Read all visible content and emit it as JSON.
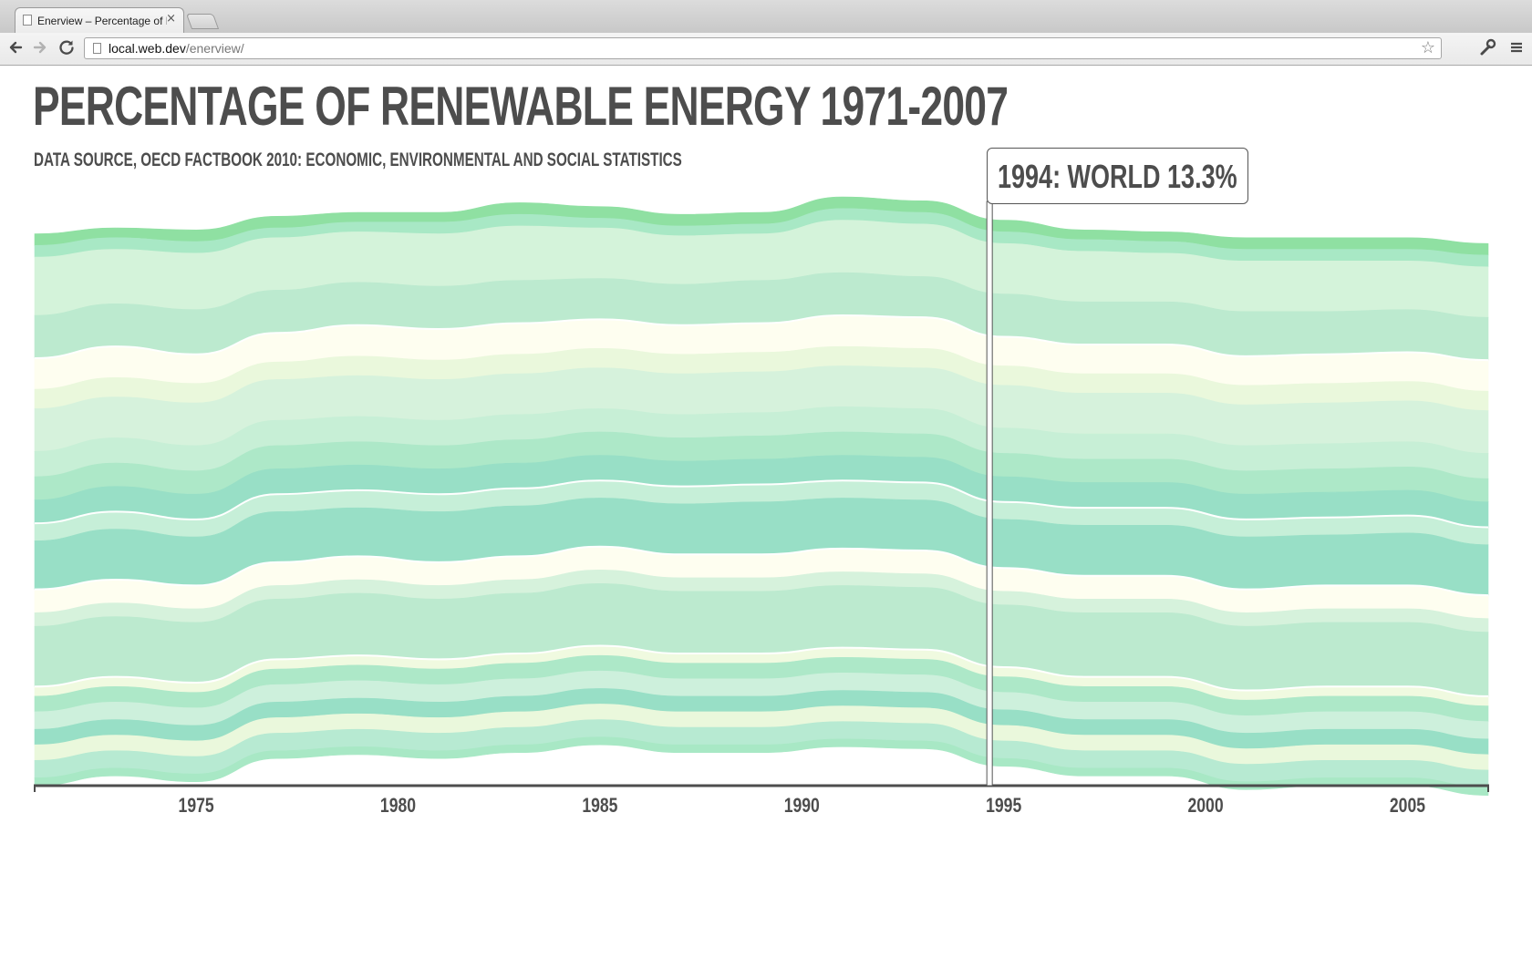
{
  "browser": {
    "tab_title": "Enerview – Percentage of R",
    "tab_close": "×",
    "url_host": "local.web.dev",
    "url_path": "/enerview/",
    "back_icon": "arrow-left-icon",
    "forward_icon": "arrow-right-icon",
    "reload_icon": "reload-icon",
    "star_icon": "star-icon",
    "wrench_icon": "wrench-icon",
    "menu_icon": "menu-icon"
  },
  "page": {
    "title": "PERCENTAGE OF RENEWABLE ENERGY 1971-2007",
    "subtitle": "DATA SOURCE, OECD FACTBOOK 2010: ECONOMIC, ENVIRONMENTAL AND SOCIAL STATISTICS"
  },
  "tooltip": {
    "text": "1994: WORLD 13.3%",
    "year": 1994
  },
  "chart_data": {
    "type": "area",
    "layout": "streamgraph",
    "title": "PERCENTAGE OF RENEWABLE ENERGY 1971-2007",
    "subtitle": "DATA SOURCE, OECD FACTBOOK 2010: ECONOMIC, ENVIRONMENTAL AND SOCIAL STATISTICS",
    "xlim": [
      1971,
      2007
    ],
    "x_ticks": [
      "1975",
      "1980",
      "1985",
      "1990",
      "1995",
      "2000",
      "2005"
    ],
    "x": [
      1971,
      1973,
      1975,
      1977,
      1979,
      1981,
      1983,
      1985,
      1987,
      1989,
      1991,
      1993,
      1995,
      1997,
      1999,
      2001,
      2003,
      2005,
      2007
    ],
    "colors": [
      "#8fe0a2",
      "#a8e8c5",
      "#d4f3da",
      "#bceacf",
      "#fefef0",
      "#eaf8dc",
      "#d6f2dc",
      "#c7efd6",
      "#ade8c8",
      "#98dfc6",
      "#c6efd8",
      "#98dfc6",
      "#fefef0",
      "#d6f2dc",
      "#bceacf",
      "#f0fae0",
      "#ade8c8",
      "#cdf0dc",
      "#98dfc6",
      "#eaf8dc",
      "#b7ead2",
      "#a8e8c5"
    ],
    "series": [
      {
        "values": [
          6,
          5,
          6,
          6,
          5,
          5,
          6,
          6,
          6,
          6,
          6,
          6,
          6,
          5,
          5,
          6,
          6,
          6,
          6
        ]
      },
      {
        "values": [
          6,
          6,
          6,
          5,
          5,
          6,
          6,
          5,
          5,
          5,
          6,
          6,
          6,
          6,
          6,
          6,
          6,
          6,
          6
        ]
      },
      {
        "values": [
          30,
          28,
          29,
          27,
          26,
          27,
          28,
          26,
          25,
          24,
          27,
          27,
          26,
          26,
          25,
          26,
          26,
          25,
          26
        ]
      },
      {
        "values": [
          22,
          22,
          23,
          22,
          22,
          22,
          22,
          21,
          21,
          22,
          22,
          21,
          22,
          22,
          22,
          23,
          22,
          22,
          22
        ]
      },
      {
        "values": [
          16,
          16,
          15,
          15,
          16,
          16,
          16,
          15,
          15,
          15,
          16,
          16,
          15,
          15,
          15,
          15,
          15,
          15,
          16
        ]
      },
      {
        "values": [
          10,
          10,
          10,
          9,
          10,
          10,
          10,
          10,
          10,
          10,
          10,
          10,
          10,
          10,
          10,
          10,
          10,
          10,
          10
        ]
      },
      {
        "values": [
          22,
          21,
          22,
          21,
          21,
          21,
          21,
          21,
          21,
          21,
          21,
          21,
          22,
          21,
          21,
          21,
          21,
          21,
          22
        ]
      },
      {
        "values": [
          13,
          13,
          13,
          13,
          13,
          13,
          13,
          12,
          12,
          12,
          13,
          13,
          13,
          13,
          13,
          13,
          13,
          13,
          13
        ]
      },
      {
        "values": [
          12,
          12,
          12,
          12,
          12,
          12,
          12,
          12,
          12,
          12,
          12,
          12,
          12,
          12,
          12,
          12,
          12,
          12,
          12
        ]
      },
      {
        "values": [
          12,
          13,
          13,
          13,
          13,
          13,
          13,
          13,
          13,
          13,
          13,
          13,
          13,
          13,
          13,
          13,
          13,
          13,
          13
        ]
      },
      {
        "values": [
          9,
          9,
          9,
          9,
          9,
          9,
          9,
          9,
          9,
          9,
          9,
          9,
          9,
          9,
          9,
          9,
          9,
          9,
          9
        ]
      },
      {
        "values": [
          25,
          26,
          25,
          26,
          25,
          26,
          26,
          25,
          26,
          27,
          26,
          26,
          25,
          26,
          26,
          27,
          26,
          27,
          26
        ]
      },
      {
        "values": [
          12,
          12,
          12,
          12,
          12,
          12,
          12,
          12,
          12,
          12,
          12,
          12,
          12,
          12,
          12,
          12,
          12,
          12,
          12
        ]
      },
      {
        "values": [
          7,
          7,
          7,
          7,
          7,
          7,
          7,
          7,
          7,
          7,
          7,
          7,
          7,
          7,
          7,
          7,
          7,
          7,
          7
        ]
      },
      {
        "values": [
          31,
          31,
          31,
          31,
          32,
          31,
          31,
          32,
          32,
          32,
          32,
          32,
          32,
          33,
          33,
          33,
          33,
          33,
          33
        ]
      },
      {
        "values": [
          5,
          5,
          5,
          5,
          5,
          5,
          5,
          5,
          5,
          5,
          5,
          5,
          5,
          5,
          5,
          5,
          5,
          5,
          5
        ]
      },
      {
        "values": [
          8,
          8,
          8,
          8,
          8,
          8,
          8,
          8,
          8,
          8,
          8,
          8,
          8,
          8,
          8,
          8,
          8,
          8,
          8
        ]
      },
      {
        "values": [
          9,
          9,
          9,
          9,
          9,
          9,
          9,
          9,
          9,
          9,
          9,
          9,
          9,
          9,
          9,
          9,
          9,
          9,
          9
        ]
      },
      {
        "values": [
          8,
          8,
          8,
          8,
          8,
          8,
          8,
          8,
          8,
          8,
          8,
          8,
          8,
          8,
          8,
          8,
          8,
          8,
          8
        ]
      },
      {
        "values": [
          8,
          8,
          8,
          8,
          8,
          8,
          8,
          8,
          8,
          8,
          8,
          8,
          8,
          8,
          8,
          8,
          8,
          8,
          8
        ]
      },
      {
        "values": [
          9,
          9,
          9,
          9,
          9,
          9,
          9,
          9,
          9,
          9,
          9,
          9,
          9,
          9,
          9,
          9,
          9,
          9,
          9
        ]
      },
      {
        "values": [
          4,
          4,
          4,
          4,
          4,
          4,
          4,
          4,
          4,
          4,
          4,
          4,
          4,
          4,
          4,
          4,
          4,
          4,
          4
        ]
      }
    ],
    "baseline_offset": [
      0,
      -3,
      -2,
      -9,
      -11,
      -11,
      -16,
      -14,
      -10,
      -11,
      -19,
      -17,
      -7,
      -2,
      -1,
      2,
      2,
      2,
      5
    ],
    "highlight_year": 1994,
    "axis_color": "#4d4d4d",
    "separator_color": "#ffffff"
  }
}
